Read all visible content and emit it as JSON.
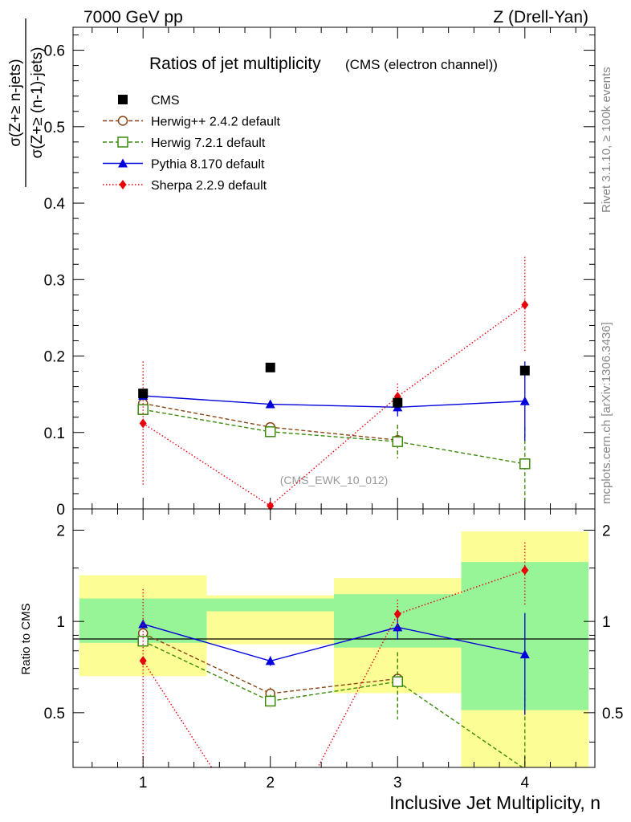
{
  "header": {
    "left": "7000 GeV pp",
    "right": "Z (Drell-Yan)"
  },
  "side_labels": {
    "rivet": "Rivet 3.1.10, ≥ 100k events",
    "mcplots": "mcplots.cern.ch [arXiv:1306.3436]"
  },
  "chart_data": {
    "type": "line",
    "title": "Ratios of jet multiplicity",
    "subtitle": "(CMS (electron channel))",
    "watermark": "(CMS_EWK_10_012)",
    "ylabel_numerator": "σ(Z+≥ n-jets)",
    "ylabel_denominator": "σ(Z+≥ (n-1)-jets)",
    "xlabel": "Inclusive Jet Multiplicity, n",
    "ratio_ylabel": "Ratio to CMS",
    "x": [
      1,
      2,
      3,
      4
    ],
    "xlim": [
      0.45,
      4.55
    ],
    "ylim": [
      0,
      0.63
    ],
    "yticks": [
      0,
      0.1,
      0.2,
      0.3,
      0.4,
      0.5,
      0.6
    ],
    "ytick_labels": [
      "0",
      "0.1",
      "0.2",
      "0.3",
      "0.4",
      "0.5",
      "0.6"
    ],
    "xticks": [
      1,
      2,
      3,
      4
    ],
    "xtick_labels": [
      "1",
      "2",
      "3",
      "4"
    ],
    "ratio_ylim": [
      0.33,
      2.35
    ],
    "ratio_ytick_labels": [
      {
        "value": 0.5,
        "label": "0.5"
      },
      {
        "value": 1,
        "label": "1"
      },
      {
        "value": 2,
        "label": "2"
      }
    ],
    "legend_position": "top-left",
    "data_series": {
      "name": "CMS",
      "color": "#000000",
      "values": [
        0.151,
        0.185,
        0.139,
        0.181
      ],
      "band_inner": [
        [
          0.85,
          1.19
        ],
        [
          1.08,
          1.19
        ],
        [
          0.82,
          1.23
        ],
        [
          0.51,
          1.57
        ]
      ],
      "band_outer": [
        [
          0.66,
          1.42
        ],
        [
          0.84,
          1.22
        ],
        [
          0.58,
          1.39
        ],
        [
          0.33,
          1.98
        ]
      ]
    },
    "series": [
      {
        "name": "Herwig++ 2.4.2 default",
        "color": "#8b4513",
        "marker": "open-circle",
        "dash": "5,3",
        "values": [
          0.138,
          0.107,
          0.09,
          null
        ],
        "err": [
          0.004,
          0.005,
          0.02,
          0
        ]
      },
      {
        "name": "Herwig 7.2.1 default",
        "color": "#3a8a0a",
        "marker": "open-square",
        "dash": "5,3",
        "values": [
          0.13,
          0.101,
          0.088,
          0.059
        ],
        "err": [
          0.004,
          0.005,
          0.022,
          0.048
        ]
      },
      {
        "name": "Pythia 8.170 default",
        "color": "#0000dd",
        "marker": "triangle",
        "dash": "",
        "values": [
          0.148,
          0.137,
          0.133,
          0.141
        ],
        "err": [
          0.003,
          0.005,
          0.012,
          0.052
        ]
      },
      {
        "name": "Sherpa 2.2.9 default",
        "color": "#e8000b",
        "marker": "diamond",
        "dash": "1.5,2.5",
        "values": [
          0.112,
          0.004,
          0.147,
          0.267
        ],
        "err": [
          0.081,
          0.003,
          0.017,
          0.063
        ]
      }
    ]
  }
}
